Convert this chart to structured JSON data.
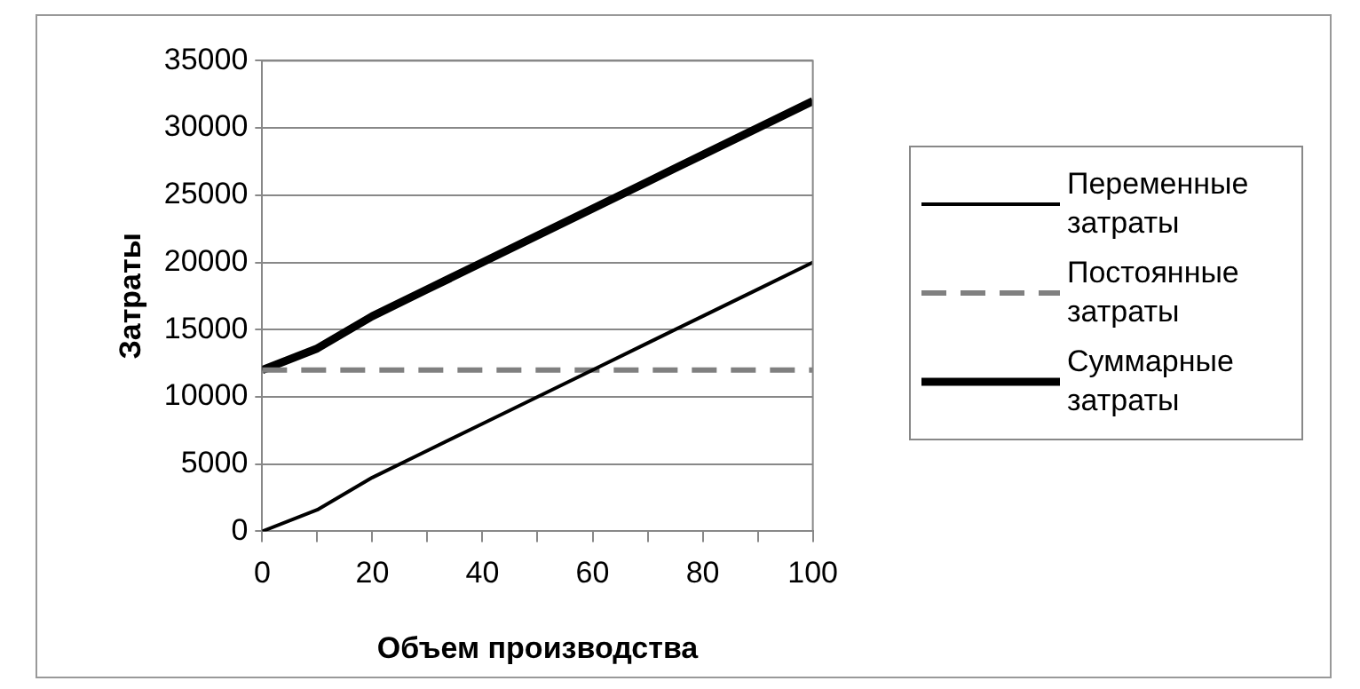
{
  "chart_data": {
    "type": "line",
    "xlabel": "Объем производства",
    "ylabel": "Затраты",
    "x": [
      0,
      10,
      20,
      30,
      40,
      50,
      60,
      70,
      80,
      90,
      100
    ],
    "series": [
      {
        "name": "Переменные затраты",
        "color": "#000000",
        "line_style": "solid",
        "values": [
          0,
          1600,
          4000,
          6000,
          8000,
          10000,
          12000,
          14000,
          16000,
          18000,
          20000
        ]
      },
      {
        "name": "Постоянные затраты",
        "color": "#808080",
        "line_style": "dashed",
        "values": [
          12000,
          12000,
          12000,
          12000,
          12000,
          12000,
          12000,
          12000,
          12000,
          12000,
          12000
        ]
      },
      {
        "name": "Суммарные затраты",
        "color": "#000000",
        "line_style": "solid",
        "values": [
          12000,
          13600,
          16000,
          18000,
          20000,
          22000,
          24000,
          26000,
          28000,
          30000,
          32000
        ]
      }
    ],
    "xlim": [
      0,
      100
    ],
    "xticks": [
      0,
      {
        "value": 10,
        "label": null
      },
      20,
      {
        "value": 30,
        "label": null
      },
      40,
      {
        "value": 50,
        "label": null
      },
      60,
      {
        "value": 70,
        "label": null
      },
      80,
      {
        "value": 90,
        "label": null
      },
      100
    ],
    "ylim": [
      0,
      35000
    ],
    "yticks": [
      0,
      5000,
      10000,
      15000,
      20000,
      25000,
      30000,
      35000
    ],
    "grid": "y",
    "legend": "right",
    "marker": "none"
  }
}
